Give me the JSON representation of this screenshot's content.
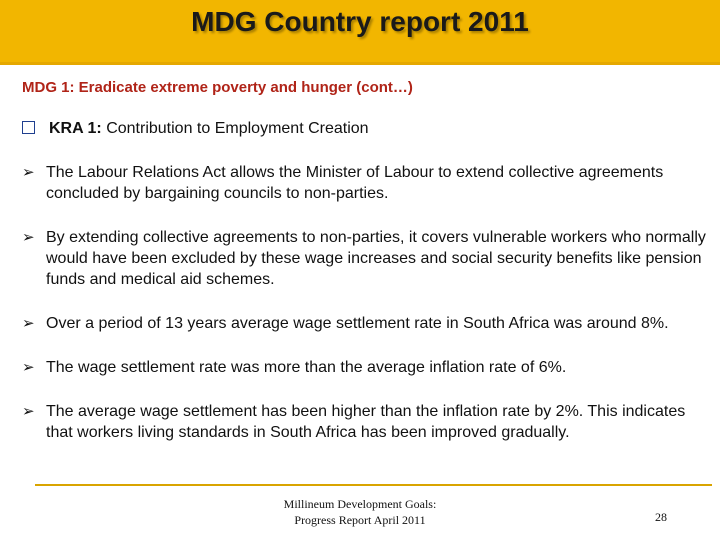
{
  "header": {
    "title": "MDG Country report 2011"
  },
  "subtitle": "MDG 1: Eradicate extreme poverty and hunger (cont…)",
  "kra": {
    "label": "KRA 1:",
    "text": "Contribution to Employment Creation"
  },
  "bullets": [
    "The Labour Relations Act allows the Minister of Labour to extend collective agreements concluded by bargaining councils to non-parties.",
    "By extending collective agreements to non-parties, it covers vulnerable workers who normally would have been excluded  by these wage increases and social security benefits like pension funds and medical aid schemes.",
    "Over a period of 13 years average wage settlement rate in South Africa was around 8%.",
    "The wage settlement rate was more than the average inflation rate of 6%.",
    "The average wage settlement has  been higher than the inflation rate by 2%. This indicates that workers living standards in South Africa has been improved gradually."
  ],
  "footer": {
    "lines": [
      "Millineum Development Goals:",
      "Progress Report  April 2011"
    ],
    "page": "28"
  }
}
